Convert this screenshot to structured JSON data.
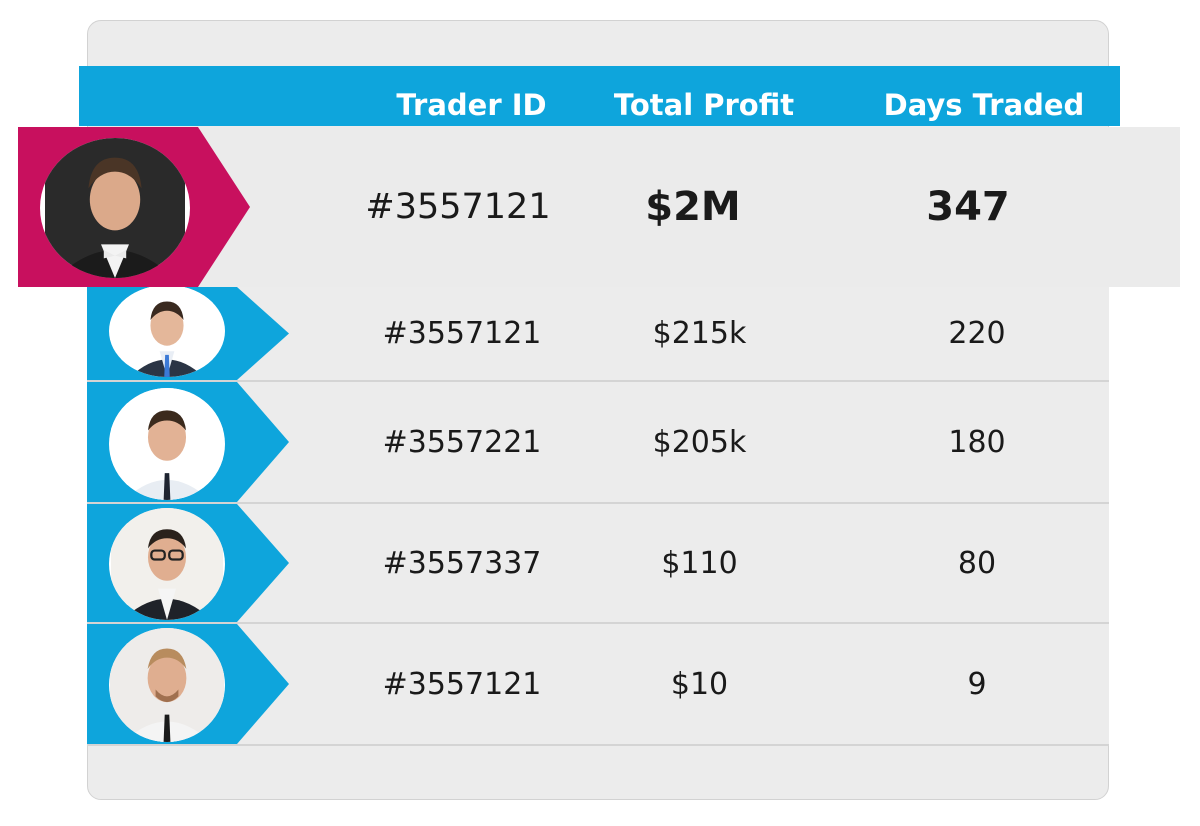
{
  "header": {
    "trader_id": "Trader ID",
    "total_profit": "Total Profit",
    "days_traded": "Days Traded"
  },
  "leader": {
    "trader_id": "#3557121",
    "total_profit": "$2M",
    "days_traded": "347"
  },
  "rows": [
    {
      "trader_id": "#3557121",
      "total_profit": "$215k",
      "days_traded": "220"
    },
    {
      "trader_id": "#3557221",
      "total_profit": "$205k",
      "days_traded": "180"
    },
    {
      "trader_id": "#3557337",
      "total_profit": "$110",
      "days_traded": "80"
    },
    {
      "trader_id": "#3557121",
      "total_profit": "$10",
      "days_traded": "9"
    }
  ],
  "colors": {
    "accent_blue": "#0ea5dc",
    "leader_magenta": "#c8105e",
    "row_bg": "#ececec"
  },
  "icons": {
    "avatar": "trader-avatar-photo"
  }
}
